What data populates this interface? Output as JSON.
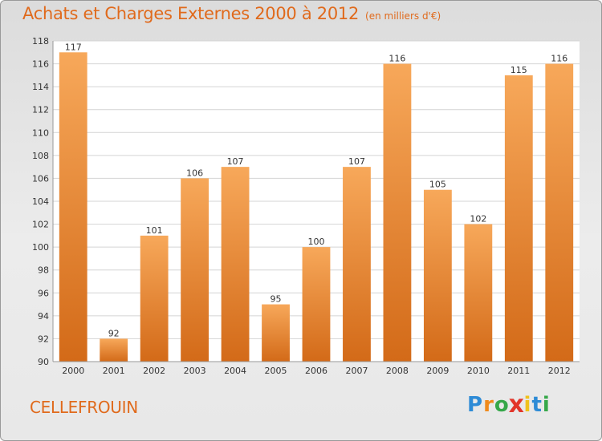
{
  "header": {
    "title": "Achats et Charges Externes 2000 à 2012",
    "unit": "(en milliers d'€)"
  },
  "footer": {
    "commune": "CELLEFROUIN",
    "logo_letters": [
      "P",
      "r",
      "o",
      "x",
      "i",
      "t",
      "i"
    ],
    "logo_colors": [
      "#2e8bd6",
      "#f08a1c",
      "#36a84a",
      "#e2352a",
      "#f0c21c",
      "#2e8bd6",
      "#36a84a"
    ]
  },
  "chart_data": {
    "type": "bar",
    "title": "Achats et Charges Externes 2000 à 2012",
    "subtitle": "(en milliers d'€)",
    "categories": [
      "2000",
      "2001",
      "2002",
      "2003",
      "2004",
      "2005",
      "2006",
      "2007",
      "2008",
      "2009",
      "2010",
      "2011",
      "2012"
    ],
    "values": [
      117,
      92,
      101,
      106,
      107,
      95,
      100,
      107,
      116,
      105,
      102,
      115,
      116
    ],
    "ylim": [
      90,
      118
    ],
    "yticks": [
      90,
      92,
      94,
      96,
      98,
      100,
      102,
      104,
      106,
      108,
      110,
      112,
      114,
      116,
      118
    ],
    "grid": true,
    "bar_color_light": "#f7a85a",
    "bar_color_dark": "#d36a18"
  }
}
